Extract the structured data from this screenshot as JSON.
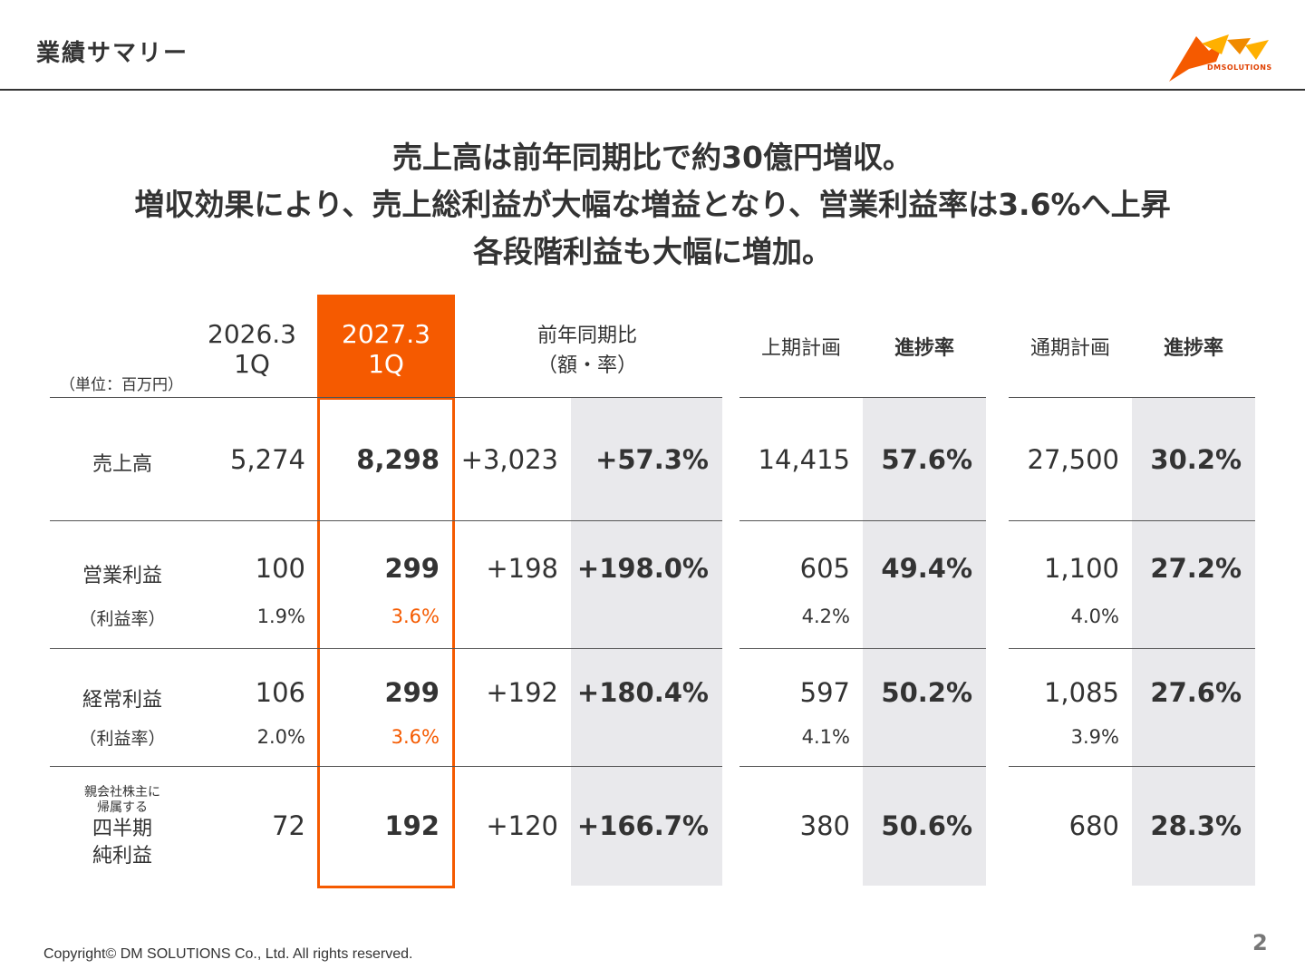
{
  "header": {
    "title": "業績サマリー",
    "logo_text": "DMSOLUTIONS",
    "accent": "#f55a00"
  },
  "headline": [
    "売上高は前年同期比で約30億円増収。",
    "増収効果により、売上総利益が大幅な増益となり、営業利益率は3.6%へ上昇",
    "各段階利益も大幅に増加。"
  ],
  "table": {
    "unit": "（単位：百万円）",
    "headers": {
      "prev_line1": "2026.3",
      "prev_line2": "1Q",
      "cur_line1": "2027.3",
      "cur_line2": "1Q",
      "yoy_line1": "前年同期比",
      "yoy_line2": "（額・率）",
      "half_plan": "上期計画",
      "half_progress": "進捗率",
      "full_plan": "通期計画",
      "full_progress": "進捗率"
    },
    "rows": [
      {
        "label": "売上高",
        "prev": "5,274",
        "cur": "8,298",
        "yoy_amount": "+3,023",
        "yoy_rate": "+57.3%",
        "half_plan": "14,415",
        "half_progress": "57.6%",
        "full_plan": "27,500",
        "full_progress": "30.2%"
      },
      {
        "label": "営業利益",
        "sub_label": "（利益率）",
        "prev": "100",
        "cur": "299",
        "yoy_amount": "+198",
        "yoy_rate": "+198.0%",
        "half_plan": "605",
        "half_progress": "49.4%",
        "full_plan": "1,100",
        "full_progress": "27.2%",
        "prev_sub": "1.9%",
        "cur_sub": "3.6%",
        "half_sub": "4.2%",
        "full_sub": "4.0%"
      },
      {
        "label": "経常利益",
        "sub_label": "（利益率）",
        "prev": "106",
        "cur": "299",
        "yoy_amount": "+192",
        "yoy_rate": "+180.4%",
        "half_plan": "597",
        "half_progress": "50.2%",
        "full_plan": "1,085",
        "full_progress": "27.6%",
        "prev_sub": "2.0%",
        "cur_sub": "3.6%",
        "half_sub": "4.1%",
        "full_sub": "3.9%"
      },
      {
        "label_small1": "親会社株主に",
        "label_small2": "帰属する",
        "label1": "四半期",
        "label2": "純利益",
        "prev": "72",
        "cur": "192",
        "yoy_amount": "+120",
        "yoy_rate": "+166.7%",
        "half_plan": "380",
        "half_progress": "50.6%",
        "full_plan": "680",
        "full_progress": "28.3%"
      }
    ]
  },
  "footer": {
    "copyright": "Copyright© DM SOLUTIONS Co., Ltd. All rights reserved.",
    "page": "2"
  }
}
